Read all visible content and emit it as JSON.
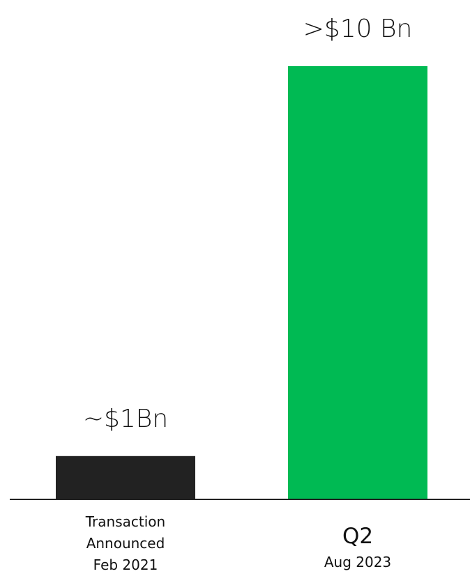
{
  "chart_data": {
    "type": "bar",
    "categories": [
      {
        "main": "",
        "sub_lines": [
          "Transaction",
          "Announced",
          "Feb 2021"
        ]
      },
      {
        "main": "Q2",
        "sub_lines": [
          "Aug 2023"
        ]
      }
    ],
    "values": [
      1,
      10
    ],
    "value_labels": [
      "~$1Bn",
      ">$10 Bn"
    ],
    "colors": [
      "#222222",
      "#00BA53"
    ],
    "axis_color": "#222222",
    "ylim": [
      0,
      10
    ],
    "grid": false,
    "legend": "none"
  }
}
